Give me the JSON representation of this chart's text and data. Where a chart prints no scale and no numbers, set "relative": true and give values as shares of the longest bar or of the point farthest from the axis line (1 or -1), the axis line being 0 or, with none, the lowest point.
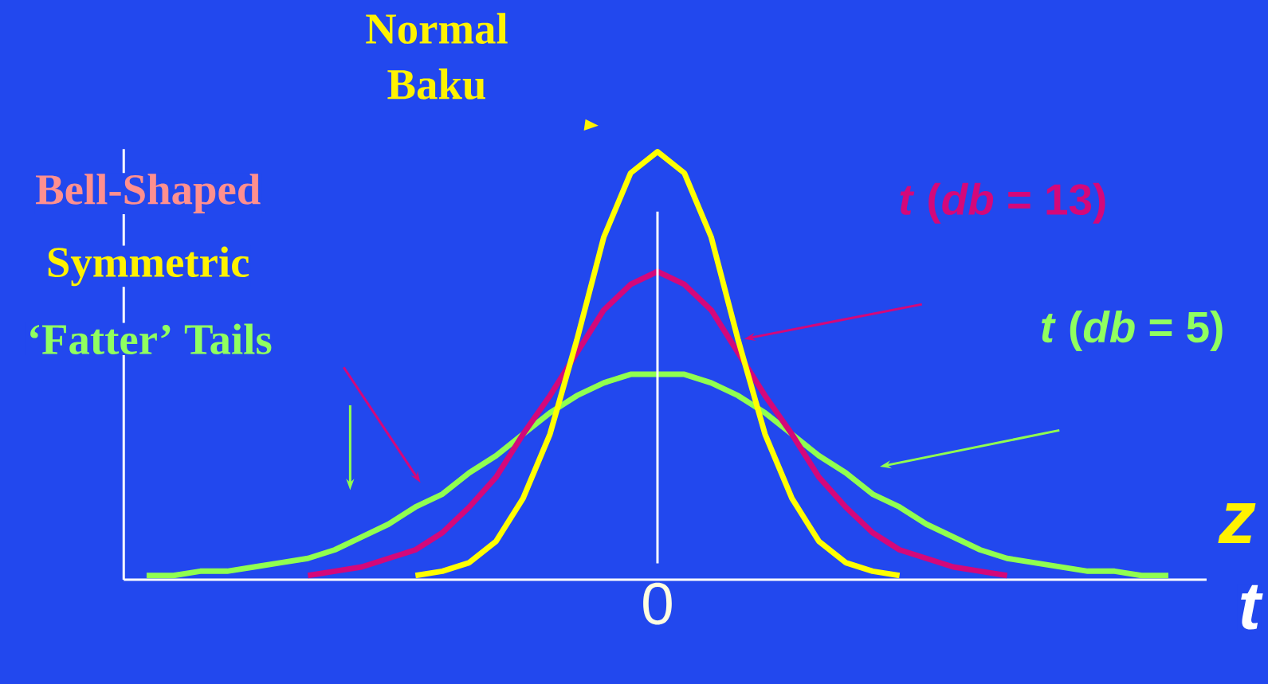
{
  "chart_data": {
    "type": "line",
    "relative": true,
    "xlabel": "z",
    "categories": [
      null,
      null,
      null,
      null,
      null,
      null,
      null,
      null,
      null,
      null,
      null,
      null,
      null,
      null,
      null,
      null,
      null,
      null,
      null,
      null,
      null,
      null,
      null,
      null,
      null,
      null,
      null,
      null,
      null,
      null,
      null,
      null,
      null,
      null,
      null,
      null,
      null,
      null,
      null
    ],
    "annotations": [
      "Bell-Shaped",
      "Symmetric",
      "‘Fatter’ Tails",
      "t"
    ],
    "ref_lines": [
      {
        "axis": "x",
        "label": "0",
        "color": "#ffffff"
      }
    ],
    "series": [
      {
        "name": "*t* (*db* = 5)",
        "color": "#90ff50",
        "values": [
          0.01,
          0.01,
          0.02,
          0.02,
          0.03,
          0.04,
          0.05,
          0.07,
          0.1,
          0.13,
          0.17,
          0.2,
          0.25,
          0.29,
          0.34,
          0.39,
          0.43,
          0.46,
          0.48,
          0.48,
          0.48,
          0.46,
          0.43,
          0.39,
          0.34,
          0.29,
          0.25,
          0.2,
          0.17,
          0.13,
          0.1,
          0.07,
          0.05,
          0.04,
          0.03,
          0.02,
          0.02,
          0.01,
          0.01
        ]
      },
      {
        "name": "*t* (*db* = 13)",
        "color": "#d4087a",
        "values": [
          null,
          null,
          null,
          null,
          null,
          null,
          0.01,
          0.02,
          0.03,
          0.05,
          0.07,
          0.11,
          0.17,
          0.24,
          0.34,
          0.43,
          0.53,
          0.63,
          0.69,
          0.72,
          0.69,
          0.63,
          0.53,
          0.43,
          0.34,
          0.24,
          0.17,
          0.11,
          0.07,
          0.05,
          0.03,
          0.02,
          0.01,
          null,
          null,
          null,
          null,
          null,
          null
        ]
      },
      {
        "name": "Normal Baku",
        "color": "#ffff00",
        "values": [
          null,
          null,
          null,
          null,
          null,
          null,
          null,
          null,
          null,
          null,
          0.01,
          0.02,
          0.04,
          0.09,
          0.19,
          0.34,
          0.56,
          0.8,
          0.95,
          1,
          0.95,
          0.8,
          0.56,
          0.34,
          0.19,
          0.09,
          0.04,
          0.02,
          0.01,
          null,
          null,
          null,
          null,
          null,
          null,
          null,
          null,
          null,
          null
        ]
      }
    ]
  }
}
